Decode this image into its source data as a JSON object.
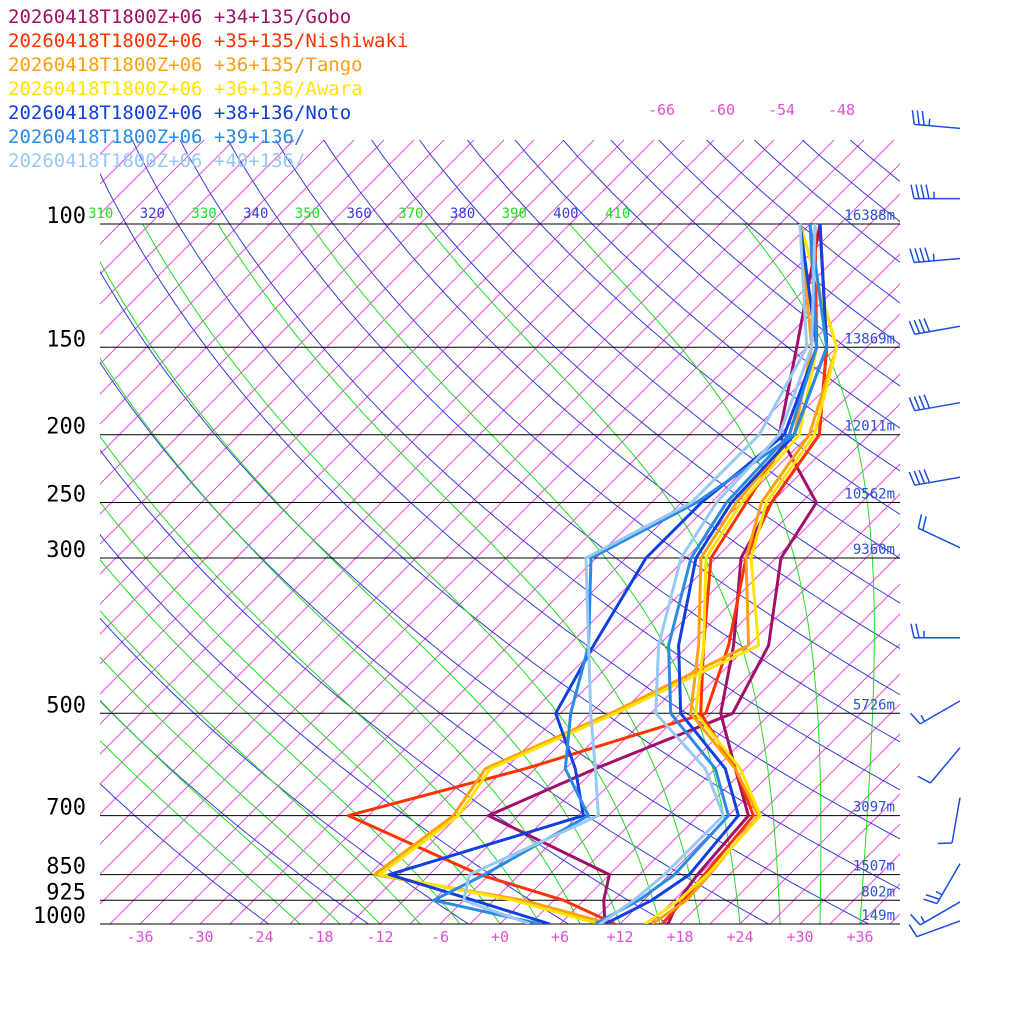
{
  "chart_data": {
    "type": "line",
    "chart_kind": "skew-T log-P sounding",
    "title": "",
    "xlabel": "",
    "ylabel": "",
    "x_ticks": [
      "-36",
      "-30",
      "-24",
      "-18",
      "-12",
      "-6",
      "+0",
      "+6",
      "+12",
      "+18",
      "+24",
      "+30",
      "+36"
    ],
    "x_tick_values": [
      -36,
      -30,
      -24,
      -18,
      -12,
      -6,
      0,
      6,
      12,
      18,
      24,
      30,
      36
    ],
    "xlim": [
      -40,
      40
    ],
    "pressure_levels": [
      {
        "label": "100",
        "p": 100,
        "height": "16388m"
      },
      {
        "label": "150",
        "p": 150,
        "height": "13869m"
      },
      {
        "label": "200",
        "p": 200,
        "height": "12011m"
      },
      {
        "label": "250",
        "p": 250,
        "height": "10562m"
      },
      {
        "label": "300",
        "p": 300,
        "height": "9360m"
      },
      {
        "label": "500",
        "p": 500,
        "height": "5726m"
      },
      {
        "label": "700",
        "p": 700,
        "height": "3097m"
      },
      {
        "label": "850",
        "p": 850,
        "height": "1507m"
      },
      {
        "label": "925",
        "p": 925,
        "height": "802m"
      },
      {
        "label": "1000",
        "p": 1000,
        "height": "149m"
      }
    ],
    "theta_labels": [
      {
        "label": "310",
        "value": 310,
        "color": "#22dd22"
      },
      {
        "label": "320",
        "value": 320,
        "color": "#3a3ae0"
      },
      {
        "label": "330",
        "value": 330,
        "color": "#22dd22"
      },
      {
        "label": "340",
        "value": 340,
        "color": "#3a3ae0"
      },
      {
        "label": "350",
        "value": 350,
        "color": "#22dd22"
      },
      {
        "label": "360",
        "value": 360,
        "color": "#3a3ae0"
      },
      {
        "label": "370",
        "value": 370,
        "color": "#22dd22"
      },
      {
        "label": "380",
        "value": 380,
        "color": "#3a3ae0"
      },
      {
        "label": "390",
        "value": 390,
        "color": "#22dd22"
      },
      {
        "label": "400",
        "value": 400,
        "color": "#3a3ae0"
      },
      {
        "label": "410",
        "value": 410,
        "color": "#22dd22"
      }
    ],
    "upper_temp_labels": [
      "-66",
      "-60",
      "-54",
      "-48"
    ],
    "colors": {
      "isotherm": "#e24fd6",
      "dry_adiabat": "#3a3ae0",
      "moist_adiabat": "#22dd22",
      "isobar": "#000000",
      "height": "#2b4fd8",
      "barb": "#1a4fe0"
    },
    "series": [
      {
        "name": "20260418T1800Z+06 +34+135/Gobo",
        "color": "#a0106a",
        "points": [
          [
            1000,
            16.8
          ],
          [
            925,
            15.5
          ],
          [
            850,
            14.8
          ],
          [
            700,
            14.0
          ],
          [
            600,
            8.0
          ],
          [
            500,
            1.0
          ],
          [
            400,
            -4.5
          ],
          [
            300,
            -12.5
          ],
          [
            250,
            -15.0
          ],
          [
            200,
            -17.0
          ],
          [
            150,
            -25.0
          ],
          [
            100,
            -38.0
          ]
        ],
        "dewpoints": [
          [
            1000,
            10.5
          ],
          [
            925,
            8.0
          ],
          [
            850,
            6.0
          ],
          [
            700,
            -12.0
          ],
          [
            600,
            -6.0
          ],
          [
            500,
            2.2
          ],
          [
            400,
            -1.0
          ],
          [
            300,
            -8.5
          ],
          [
            250,
            -10.5
          ],
          [
            200,
            -21.0
          ],
          [
            150,
            -28.0
          ],
          [
            100,
            -38.0
          ]
        ]
      },
      {
        "name": "20260418T1800Z+06 +35+135/Nishiwaki",
        "color": "#ff3300",
        "points": [
          [
            1000,
            16.2
          ],
          [
            925,
            16.0
          ],
          [
            850,
            15.5
          ],
          [
            700,
            14.5
          ],
          [
            600,
            8.0
          ],
          [
            500,
            -1.0
          ],
          [
            400,
            -7.5
          ],
          [
            300,
            -15.5
          ],
          [
            250,
            -17.5
          ],
          [
            200,
            -20.0
          ],
          [
            150,
            -26.0
          ],
          [
            100,
            -38.5
          ]
        ],
        "dewpoints": [
          [
            1000,
            11.5
          ],
          [
            925,
            4.0
          ],
          [
            850,
            -7.0
          ],
          [
            700,
            -26.0
          ],
          [
            600,
            -13.0
          ],
          [
            500,
            -0.5
          ],
          [
            400,
            -5.0
          ],
          [
            300,
            -12.0
          ],
          [
            250,
            -15.0
          ],
          [
            200,
            -17.0
          ],
          [
            150,
            -25.0
          ],
          [
            100,
            -38.0
          ]
        ]
      },
      {
        "name": "20260418T1800Z+06 +36+135/Tango",
        "color": "#ffa010",
        "points": [
          [
            1000,
            15.2
          ],
          [
            925,
            16.3
          ],
          [
            850,
            16.0
          ],
          [
            700,
            15.0
          ],
          [
            600,
            8.0
          ],
          [
            500,
            -2.0
          ],
          [
            400,
            -8.0
          ],
          [
            300,
            -16.5
          ],
          [
            250,
            -18.5
          ],
          [
            200,
            -19.5
          ],
          [
            150,
            -26.5
          ],
          [
            100,
            -40.0
          ]
        ],
        "dewpoints": [
          [
            1000,
            11.0
          ],
          [
            925,
            0.0
          ],
          [
            850,
            -17.5
          ],
          [
            700,
            -15.5
          ],
          [
            600,
            -17.0
          ],
          [
            500,
            -10.0
          ],
          [
            400,
            -3.0
          ],
          [
            300,
            -12.0
          ],
          [
            250,
            -16.0
          ],
          [
            200,
            -18.0
          ],
          [
            150,
            -24.0
          ],
          [
            100,
            -40.0
          ]
        ]
      },
      {
        "name": "20260418T1800Z+06 +36+136/Awara",
        "color": "#ffe400",
        "points": [
          [
            1000,
            14.5
          ],
          [
            925,
            15.5
          ],
          [
            850,
            15.8
          ],
          [
            700,
            15.2
          ],
          [
            600,
            8.5
          ],
          [
            500,
            -1.5
          ],
          [
            400,
            -7.5
          ],
          [
            300,
            -16.0
          ],
          [
            250,
            -18.0
          ],
          [
            200,
            -19.0
          ],
          [
            150,
            -26.0
          ],
          [
            100,
            -40.0
          ]
        ],
        "dewpoints": [
          [
            1000,
            10.0
          ],
          [
            925,
            -1.0
          ],
          [
            850,
            -17.0
          ],
          [
            700,
            -15.0
          ],
          [
            600,
            -16.5
          ],
          [
            500,
            -9.5
          ],
          [
            400,
            -2.0
          ],
          [
            300,
            -11.5
          ],
          [
            250,
            -15.5
          ],
          [
            200,
            -17.5
          ],
          [
            150,
            -24.0
          ],
          [
            100,
            -40.0
          ]
        ]
      },
      {
        "name": "20260418T1800Z+06 +38+136/Noto",
        "color": "#1040e0",
        "points": [
          [
            1000,
            10.5
          ],
          [
            925,
            12.8
          ],
          [
            850,
            14.0
          ],
          [
            700,
            13.0
          ],
          [
            600,
            7.0
          ],
          [
            500,
            -3.0
          ],
          [
            400,
            -10.0
          ],
          [
            300,
            -17.0
          ],
          [
            250,
            -19.0
          ],
          [
            200,
            -19.5
          ],
          [
            150,
            -25.0
          ],
          [
            100,
            -38.0
          ]
        ],
        "dewpoints": [
          [
            1000,
            5.0
          ],
          [
            925,
            -5.0
          ],
          [
            850,
            -16.0
          ],
          [
            700,
            -2.5
          ],
          [
            600,
            -8.0
          ],
          [
            500,
            -15.5
          ],
          [
            400,
            -18.5
          ],
          [
            300,
            -22.0
          ],
          [
            250,
            -22.0
          ],
          [
            200,
            -20.5
          ],
          [
            150,
            -26.0
          ],
          [
            100,
            -40.0
          ]
        ]
      },
      {
        "name": "20260418T1800Z+06 +39+136/",
        "color": "#2a8ae6",
        "points": [
          [
            1000,
            9.5
          ],
          [
            925,
            11.5
          ],
          [
            850,
            12.5
          ],
          [
            700,
            12.0
          ],
          [
            600,
            6.0
          ],
          [
            500,
            -4.0
          ],
          [
            400,
            -11.0
          ],
          [
            300,
            -17.5
          ],
          [
            250,
            -19.5
          ],
          [
            200,
            -20.0
          ],
          [
            150,
            -26.0
          ],
          [
            100,
            -39.0
          ]
        ],
        "dewpoints": [
          [
            1000,
            4.0
          ],
          [
            925,
            -9.0
          ],
          [
            850,
            -6.5
          ],
          [
            700,
            -2.0
          ],
          [
            600,
            -9.0
          ],
          [
            500,
            -14.0
          ],
          [
            400,
            -19.0
          ],
          [
            300,
            -27.5
          ],
          [
            250,
            -22.5
          ],
          [
            200,
            -19.5
          ],
          [
            150,
            -25.0
          ],
          [
            100,
            -39.0
          ]
        ]
      },
      {
        "name": "20260418T1800Z+06 +40+136/",
        "color": "#99c8f4",
        "points": [
          [
            1000,
            10.0
          ],
          [
            925,
            11.0
          ],
          [
            850,
            11.5
          ],
          [
            700,
            11.5
          ],
          [
            600,
            5.0
          ],
          [
            500,
            -5.5
          ],
          [
            400,
            -12.0
          ],
          [
            300,
            -18.5
          ],
          [
            250,
            -20.5
          ],
          [
            200,
            -21.0
          ],
          [
            150,
            -26.5
          ],
          [
            100,
            -38.5
          ]
        ],
        "dewpoints": [
          [
            1000,
            3.0
          ],
          [
            925,
            -6.0
          ],
          [
            850,
            -8.0
          ],
          [
            700,
            -1.0
          ],
          [
            600,
            -6.0
          ],
          [
            500,
            -12.0
          ],
          [
            400,
            -19.0
          ],
          [
            300,
            -28.0
          ],
          [
            250,
            -23.0
          ],
          [
            200,
            -23.0
          ],
          [
            150,
            -27.0
          ],
          [
            100,
            -40.0
          ]
        ]
      }
    ],
    "wind_barbs": [
      {
        "p": 73,
        "dir": 275,
        "kt": 35
      },
      {
        "p": 92,
        "dir": 270,
        "kt": 45
      },
      {
        "p": 112,
        "dir": 265,
        "kt": 45
      },
      {
        "p": 140,
        "dir": 260,
        "kt": 40
      },
      {
        "p": 180,
        "dir": 260,
        "kt": 40
      },
      {
        "p": 230,
        "dir": 260,
        "kt": 40
      },
      {
        "p": 290,
        "dir": 295,
        "kt": 20
      },
      {
        "p": 390,
        "dir": 270,
        "kt": 25
      },
      {
        "p": 480,
        "dir": 240,
        "kt": 15
      },
      {
        "p": 560,
        "dir": 220,
        "kt": 10
      },
      {
        "p": 660,
        "dir": 190,
        "kt": 10
      },
      {
        "p": 820,
        "dir": 210,
        "kt": 25
      },
      {
        "p": 930,
        "dir": 240,
        "kt": 15
      },
      {
        "p": 990,
        "dir": 250,
        "kt": 10
      }
    ]
  }
}
